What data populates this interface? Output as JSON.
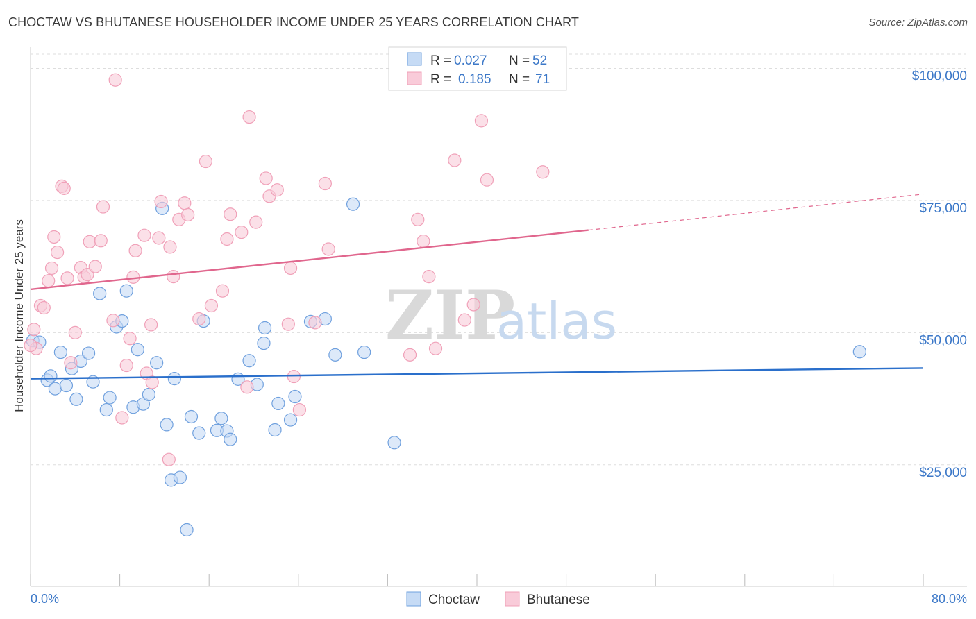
{
  "title": "CHOCTAW VS BHUTANESE HOUSEHOLDER INCOME UNDER 25 YEARS CORRELATION CHART",
  "source": "Source: ZipAtlas.com",
  "watermark": {
    "zip": "ZIP",
    "atlas": "atlas"
  },
  "colors": {
    "choctaw": "#6fa0de",
    "choctaw_line": "#2a6fcb",
    "bhutanese": "#f0a0b8",
    "bhutanese_line": "#e0668d",
    "axis_text": "#3c78c8",
    "grid": "#dddddd"
  },
  "legend": {
    "r_label": "R =",
    "n_label": "N =",
    "rows": [
      {
        "series": "Choctaw",
        "r": "0.027",
        "n": "52"
      },
      {
        "series": "Bhutanese",
        "r": "0.185",
        "n": "71"
      }
    ]
  },
  "chart_data": {
    "type": "scatter",
    "title": "CHOCTAW VS BHUTANESE HOUSEHOLDER INCOME UNDER 25 YEARS CORRELATION CHART",
    "xlabel": "",
    "ylabel": "Householder Income Under 25 years",
    "xlim": [
      0,
      80
    ],
    "ylim": [
      2000,
      104000
    ],
    "x_tick_labels": [
      "0.0%",
      "80.0%"
    ],
    "y_ticks": [
      25000,
      50000,
      75000,
      100000
    ],
    "y_tick_labels": [
      "$25,000",
      "$50,000",
      "$75,000",
      "$100,000"
    ],
    "grid": true,
    "legend_position": "top-center",
    "series": [
      {
        "name": "Choctaw",
        "trend": {
          "x": [
            0,
            80
          ],
          "y": [
            41300,
            43300
          ]
        },
        "points": [
          [
            0.2,
            48500
          ],
          [
            0.8,
            48200
          ],
          [
            1.5,
            41000
          ],
          [
            1.8,
            41800
          ],
          [
            2.2,
            39400
          ],
          [
            2.7,
            46300
          ],
          [
            3.2,
            40000
          ],
          [
            3.7,
            43200
          ],
          [
            4.1,
            37400
          ],
          [
            4.5,
            44600
          ],
          [
            5.2,
            46100
          ],
          [
            5.6,
            40700
          ],
          [
            6.2,
            57400
          ],
          [
            6.8,
            35400
          ],
          [
            7.1,
            37700
          ],
          [
            7.7,
            51100
          ],
          [
            8.2,
            52200
          ],
          [
            8.6,
            57900
          ],
          [
            9.2,
            35900
          ],
          [
            9.6,
            46800
          ],
          [
            10.1,
            36500
          ],
          [
            10.6,
            38300
          ],
          [
            11.3,
            44300
          ],
          [
            11.8,
            73500
          ],
          [
            12.2,
            32600
          ],
          [
            12.6,
            22100
          ],
          [
            12.9,
            41300
          ],
          [
            13.4,
            22600
          ],
          [
            14.0,
            12700
          ],
          [
            14.4,
            34100
          ],
          [
            15.1,
            31000
          ],
          [
            15.5,
            52200
          ],
          [
            16.7,
            31500
          ],
          [
            17.1,
            33800
          ],
          [
            17.6,
            31400
          ],
          [
            17.9,
            29800
          ],
          [
            18.6,
            41200
          ],
          [
            19.6,
            44700
          ],
          [
            20.3,
            40200
          ],
          [
            20.9,
            48000
          ],
          [
            21.0,
            50900
          ],
          [
            21.9,
            31600
          ],
          [
            22.2,
            36600
          ],
          [
            23.3,
            33500
          ],
          [
            23.7,
            37900
          ],
          [
            25.1,
            52100
          ],
          [
            26.4,
            52600
          ],
          [
            27.3,
            45800
          ],
          [
            28.9,
            74300
          ],
          [
            29.9,
            46300
          ],
          [
            32.6,
            29200
          ],
          [
            74.3,
            46400
          ]
        ]
      },
      {
        "name": "Bhutanese",
        "trend": {
          "x": [
            0,
            50
          ],
          "y": [
            58200,
            69400
          ]
        },
        "trend_dashed": {
          "x": [
            50,
            80
          ],
          "y": [
            69400,
            76200
          ]
        },
        "points": [
          [
            0.3,
            50600
          ],
          [
            0.5,
            47000
          ],
          [
            0.9,
            55100
          ],
          [
            1.2,
            54700
          ],
          [
            1.6,
            59800
          ],
          [
            1.9,
            62200
          ],
          [
            2.1,
            68100
          ],
          [
            2.4,
            65200
          ],
          [
            2.8,
            77700
          ],
          [
            3.0,
            77300
          ],
          [
            3.3,
            60300
          ],
          [
            3.6,
            44300
          ],
          [
            4.0,
            50000
          ],
          [
            4.5,
            62300
          ],
          [
            4.8,
            60500
          ],
          [
            5.1,
            61000
          ],
          [
            5.3,
            67200
          ],
          [
            5.8,
            62500
          ],
          [
            6.3,
            67400
          ],
          [
            6.5,
            73800
          ],
          [
            7.4,
            52300
          ],
          [
            7.6,
            97800
          ],
          [
            8.2,
            33900
          ],
          [
            8.6,
            43800
          ],
          [
            8.9,
            48900
          ],
          [
            9.2,
            60500
          ],
          [
            9.4,
            65500
          ],
          [
            10.2,
            68400
          ],
          [
            10.4,
            42300
          ],
          [
            10.8,
            51500
          ],
          [
            10.9,
            40600
          ],
          [
            11.5,
            67900
          ],
          [
            11.7,
            74800
          ],
          [
            12.4,
            26000
          ],
          [
            12.5,
            66200
          ],
          [
            12.8,
            60600
          ],
          [
            13.3,
            71400
          ],
          [
            13.8,
            74500
          ],
          [
            14.1,
            72300
          ],
          [
            15.1,
            52600
          ],
          [
            15.7,
            82400
          ],
          [
            16.2,
            55100
          ],
          [
            17.2,
            57900
          ],
          [
            17.6,
            67700
          ],
          [
            17.9,
            72400
          ],
          [
            18.9,
            69000
          ],
          [
            19.4,
            39700
          ],
          [
            19.6,
            90800
          ],
          [
            20.2,
            70900
          ],
          [
            21.1,
            79200
          ],
          [
            21.4,
            75800
          ],
          [
            22.1,
            77000
          ],
          [
            23.1,
            51600
          ],
          [
            23.3,
            62200
          ],
          [
            23.6,
            41700
          ],
          [
            24.1,
            35400
          ],
          [
            25.5,
            51900
          ],
          [
            26.4,
            78200
          ],
          [
            26.7,
            65800
          ],
          [
            34.0,
            45800
          ],
          [
            34.7,
            71400
          ],
          [
            35.2,
            67300
          ],
          [
            35.7,
            60600
          ],
          [
            36.3,
            47000
          ],
          [
            38.0,
            82600
          ],
          [
            38.9,
            52400
          ],
          [
            39.7,
            55300
          ],
          [
            40.4,
            90100
          ],
          [
            40.9,
            78900
          ],
          [
            45.9,
            80400
          ],
          [
            0.0,
            47600
          ]
        ]
      }
    ]
  }
}
